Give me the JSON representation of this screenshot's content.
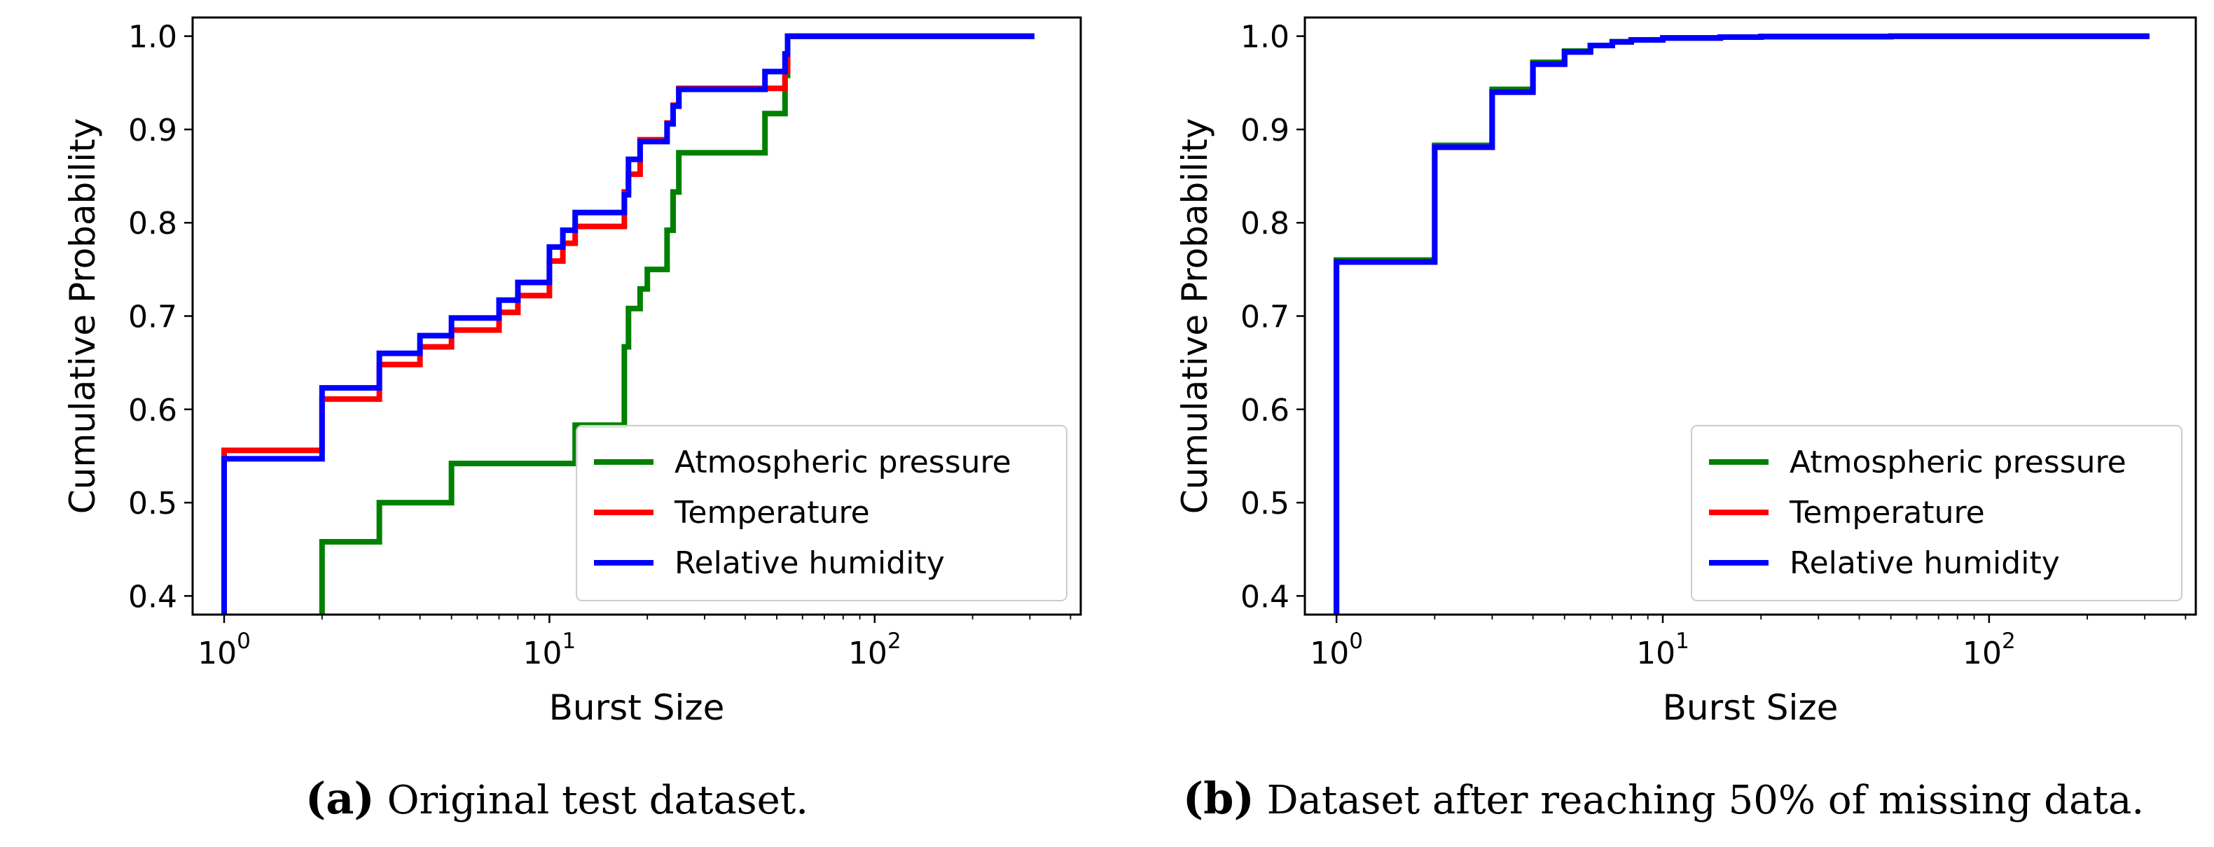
{
  "chart_data": [
    {
      "id": "a",
      "type": "line",
      "step": "post",
      "xscale": "log",
      "xlabel": "Burst Size",
      "ylabel": "Cumulative Probability",
      "xlim": [
        0.8,
        430
      ],
      "ylim": [
        0.38,
        1.02
      ],
      "xticks": [
        {
          "value": 1,
          "base": "10",
          "exp": "0"
        },
        {
          "value": 10,
          "base": "10",
          "exp": "1"
        },
        {
          "value": 100,
          "base": "10",
          "exp": "2"
        }
      ],
      "yticks": [
        "0.4",
        "0.5",
        "0.6",
        "0.7",
        "0.8",
        "0.9",
        "1.0"
      ],
      "legend_position": "lower right",
      "caption_letter": "(a)",
      "caption_text": "Original test dataset.",
      "series": [
        {
          "name": "Atmospheric pressure",
          "color": "#008000",
          "x": [
            2,
            3,
            5,
            12,
            17,
            17.5,
            19,
            20,
            23,
            24,
            25,
            46,
            53,
            54,
            310
          ],
          "y": [
            0.458,
            0.5,
            0.542,
            0.583,
            0.667,
            0.708,
            0.729,
            0.75,
            0.792,
            0.833,
            0.875,
            0.917,
            0.958,
            1.0,
            1.0
          ]
        },
        {
          "name": "Temperature",
          "color": "#ff0000",
          "x": [
            1,
            2,
            3,
            4,
            5,
            7,
            8,
            10,
            11,
            12,
            17,
            17.5,
            19,
            20,
            23,
            24,
            25,
            46,
            53,
            54,
            310
          ],
          "y": [
            0.556,
            0.611,
            0.648,
            0.667,
            0.685,
            0.704,
            0.722,
            0.759,
            0.778,
            0.796,
            0.833,
            0.852,
            0.889,
            0.889,
            0.907,
            0.926,
            0.944,
            0.944,
            0.963,
            1.0,
            1.0
          ]
        },
        {
          "name": "Relative humidity",
          "color": "#0000ff",
          "x": [
            1,
            2,
            3,
            4,
            5,
            7,
            8,
            10,
            11,
            12,
            17,
            17.5,
            19,
            20,
            23,
            24,
            25,
            46,
            53,
            54,
            310
          ],
          "y": [
            0.547,
            0.623,
            0.66,
            0.679,
            0.698,
            0.717,
            0.736,
            0.774,
            0.792,
            0.811,
            0.83,
            0.868,
            0.887,
            0.887,
            0.906,
            0.925,
            0.943,
            0.962,
            0.981,
            1.0,
            1.0
          ]
        }
      ]
    },
    {
      "id": "b",
      "type": "line",
      "step": "post",
      "xscale": "log",
      "xlabel": "Burst Size",
      "ylabel": "Cumulative Probability",
      "xlim": [
        0.8,
        430
      ],
      "ylim": [
        0.38,
        1.02
      ],
      "xticks": [
        {
          "value": 1,
          "base": "10",
          "exp": "0"
        },
        {
          "value": 10,
          "base": "10",
          "exp": "1"
        },
        {
          "value": 100,
          "base": "10",
          "exp": "2"
        }
      ],
      "yticks": [
        "0.4",
        "0.5",
        "0.6",
        "0.7",
        "0.8",
        "0.9",
        "1.0"
      ],
      "legend_position": "lower right",
      "caption_letter": "(b)",
      "caption_text": "Dataset after reaching 50% of missing data.",
      "series": [
        {
          "name": "Atmospheric pressure",
          "color": "#008000",
          "x": [
            1,
            2,
            3,
            4,
            5,
            6,
            7,
            8,
            10,
            15,
            20,
            50,
            310
          ],
          "y": [
            0.76,
            0.883,
            0.943,
            0.972,
            0.984,
            0.99,
            0.994,
            0.996,
            0.998,
            0.999,
            0.9995,
            1.0,
            1.0
          ]
        },
        {
          "name": "Temperature",
          "color": "#ff0000",
          "x": [
            1,
            2,
            3,
            4,
            5,
            6,
            7,
            8,
            10,
            15,
            20,
            50,
            310
          ],
          "y": [
            0.758,
            0.881,
            0.94,
            0.97,
            0.983,
            0.99,
            0.994,
            0.996,
            0.998,
            0.999,
            0.9995,
            1.0,
            1.0
          ]
        },
        {
          "name": "Relative humidity",
          "color": "#0000ff",
          "x": [
            1,
            2,
            3,
            4,
            5,
            6,
            7,
            8,
            10,
            15,
            20,
            50,
            310
          ],
          "y": [
            0.758,
            0.881,
            0.94,
            0.97,
            0.983,
            0.99,
            0.994,
            0.996,
            0.998,
            0.999,
            0.9995,
            1.0,
            1.0
          ]
        }
      ]
    }
  ]
}
